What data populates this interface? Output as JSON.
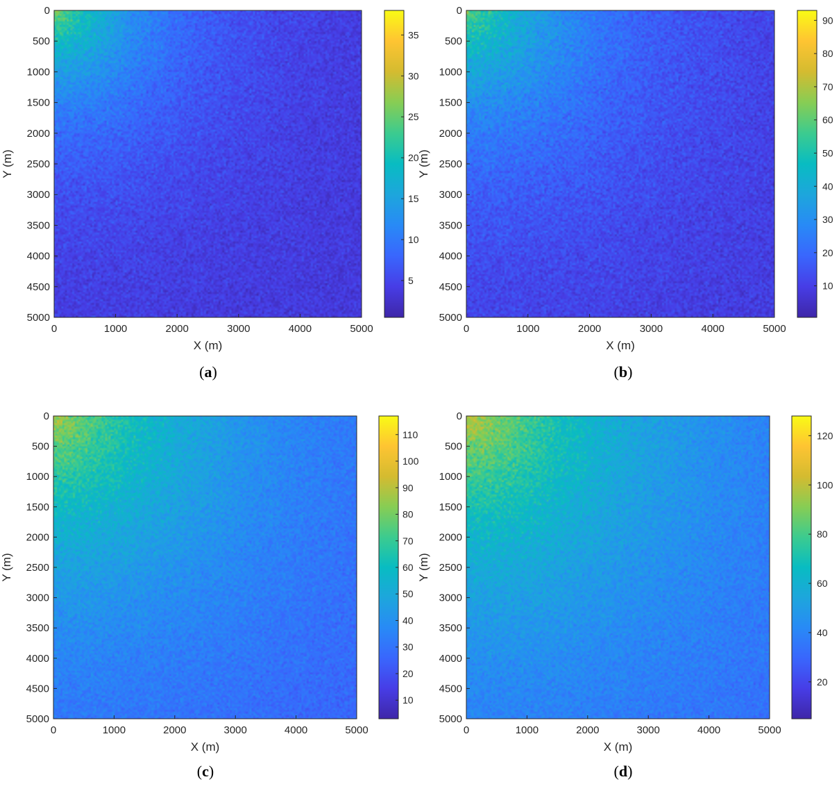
{
  "chart_data": [
    {
      "type": "heatmap",
      "caption": "a",
      "xlabel": "X (m)",
      "ylabel": "Y (m)",
      "xlim": [
        0,
        5000
      ],
      "ylim": [
        0,
        5000
      ],
      "y_direction": "reversed",
      "xticks": [
        "0",
        "1000",
        "2000",
        "3000",
        "4000",
        "5000"
      ],
      "yticks": [
        "0",
        "500",
        "1000",
        "1500",
        "2000",
        "2500",
        "3000",
        "3500",
        "4000",
        "4500",
        "5000"
      ],
      "colormap": "parula",
      "clim": [
        0.5,
        38
      ],
      "colorbar_ticks": [
        "5",
        "10",
        "15",
        "20",
        "25",
        "30",
        "35"
      ],
      "colorbar_tick_values": [
        5,
        10,
        15,
        20,
        25,
        30,
        35
      ],
      "field": {
        "peak": 26,
        "peak_location": [
          0,
          0
        ],
        "background": 3.5,
        "decay_length": 1400,
        "noise": 3.5
      }
    },
    {
      "type": "heatmap",
      "caption": "b",
      "xlabel": "X (m)",
      "ylabel": "Y (m)",
      "xlim": [
        0,
        5000
      ],
      "ylim": [
        0,
        5000
      ],
      "y_direction": "reversed",
      "xticks": [
        "0",
        "1000",
        "2000",
        "3000",
        "4000",
        "5000"
      ],
      "yticks": [
        "0",
        "500",
        "1000",
        "1500",
        "2000",
        "2500",
        "3000",
        "3500",
        "4000",
        "4500",
        "5000"
      ],
      "colormap": "parula",
      "clim": [
        0.5,
        93
      ],
      "colorbar_ticks": [
        "10",
        "20",
        "30",
        "40",
        "50",
        "60",
        "70",
        "80",
        "90"
      ],
      "colorbar_tick_values": [
        10,
        20,
        30,
        40,
        50,
        60,
        70,
        80,
        90
      ],
      "field": {
        "peak": 60,
        "peak_location": [
          0,
          0
        ],
        "background": 8,
        "decay_length": 1800,
        "noise": 9
      }
    },
    {
      "type": "heatmap",
      "caption": "c",
      "xlabel": "X (m)",
      "ylabel": "Y (m)",
      "xlim": [
        0,
        5000
      ],
      "ylim": [
        0,
        5000
      ],
      "y_direction": "reversed",
      "xticks": [
        "0",
        "1000",
        "2000",
        "3000",
        "4000",
        "5000"
      ],
      "yticks": [
        "0",
        "500",
        "1000",
        "1500",
        "2000",
        "2500",
        "3000",
        "3500",
        "4000",
        "4500",
        "5000"
      ],
      "colormap": "parula",
      "clim": [
        3,
        117
      ],
      "colorbar_ticks": [
        "10",
        "20",
        "30",
        "40",
        "50",
        "60",
        "70",
        "80",
        "90",
        "100",
        "110"
      ],
      "colorbar_tick_values": [
        10,
        20,
        30,
        40,
        50,
        60,
        70,
        80,
        90,
        100,
        110
      ],
      "field": {
        "peak": 88,
        "peak_location": [
          0,
          0
        ],
        "background": 22,
        "decay_length": 2600,
        "noise": 10
      }
    },
    {
      "type": "heatmap",
      "caption": "d",
      "xlabel": "X (m)",
      "ylabel": "Y (m)",
      "xlim": [
        0,
        5000
      ],
      "ylim": [
        0,
        5000
      ],
      "y_direction": "reversed",
      "xticks": [
        "0",
        "1000",
        "2000",
        "3000",
        "4000",
        "5000"
      ],
      "yticks": [
        "0",
        "500",
        "1000",
        "1500",
        "2000",
        "2500",
        "3000",
        "3500",
        "4000",
        "4500",
        "5000"
      ],
      "colormap": "parula",
      "clim": [
        5,
        128
      ],
      "colorbar_ticks": [
        "20",
        "40",
        "60",
        "80",
        "100",
        "120"
      ],
      "colorbar_tick_values": [
        20,
        40,
        60,
        80,
        100,
        120
      ],
      "field": {
        "peak": 100,
        "peak_location": [
          0,
          0
        ],
        "background": 28,
        "decay_length": 2800,
        "noise": 11
      }
    }
  ]
}
